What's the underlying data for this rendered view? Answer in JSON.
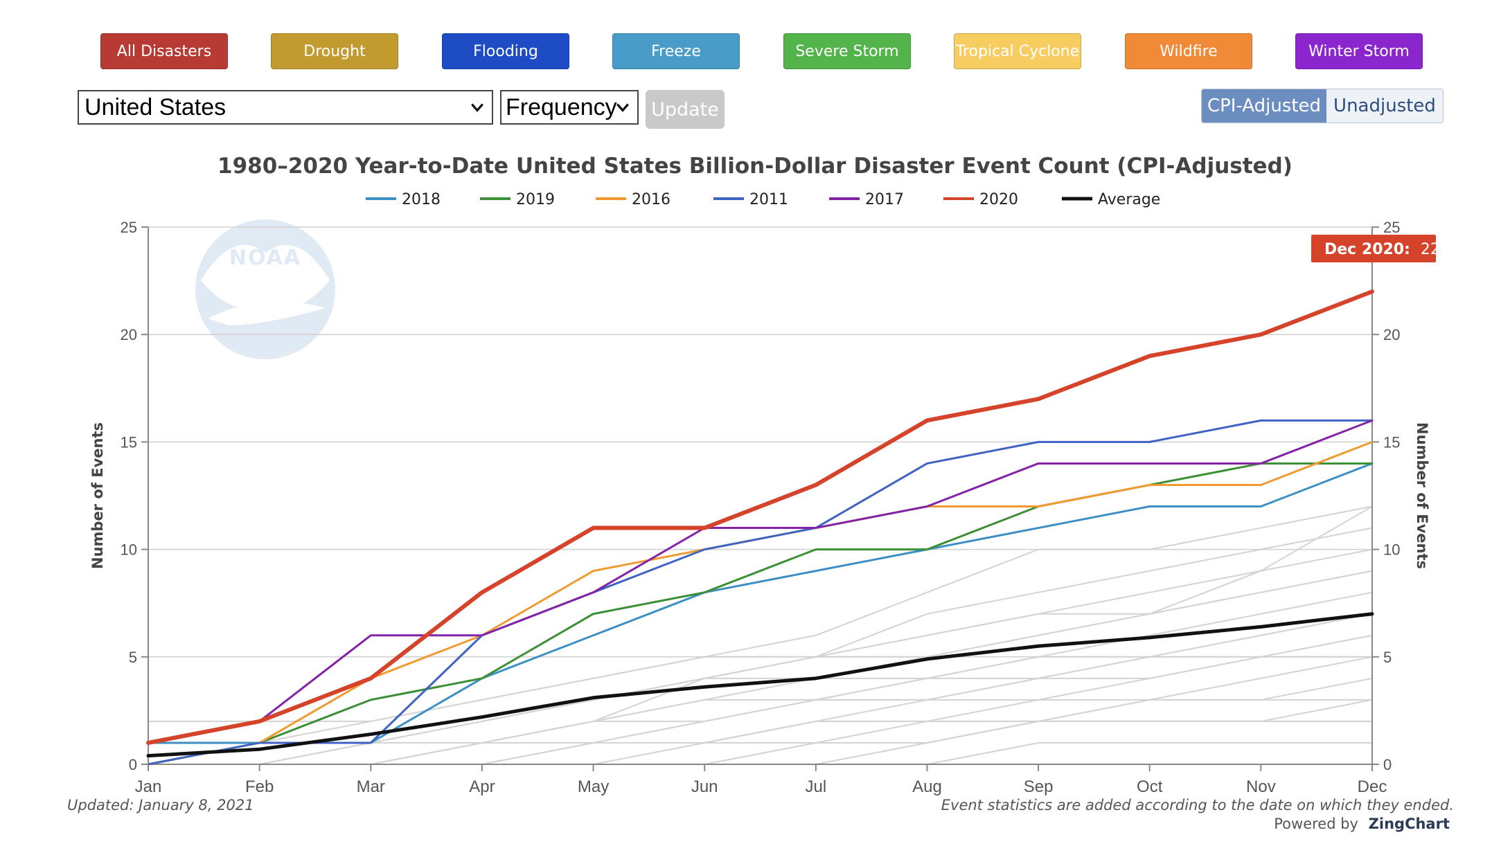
{
  "categories_bar": [
    {
      "label": "All Disasters",
      "color": "#b83a35"
    },
    {
      "label": "Drought",
      "color": "#c19a30"
    },
    {
      "label": "Flooding",
      "color": "#1d4cc5"
    },
    {
      "label": "Freeze",
      "color": "#4a9cc8"
    },
    {
      "label": "Severe Storm",
      "color": "#52b44a"
    },
    {
      "label": "Tropical Cyclone",
      "color": "#f7cd62"
    },
    {
      "label": "Wildfire",
      "color": "#f08a36"
    },
    {
      "label": "Winter Storm",
      "color": "#8b26cf"
    }
  ],
  "controls": {
    "region": "United States",
    "metric": "Frequency",
    "update_label": "Update",
    "cpi_label": "CPI-Adjusted",
    "unadjusted_label": "Unadjusted"
  },
  "logo_text": "NOAA",
  "tooltip": {
    "label": "Dec 2020:",
    "value": "22",
    "color": "#d4432a"
  },
  "footer": {
    "updated": "Updated: January 8, 2021",
    "note": "Event statistics are added according to the date on which they ended.",
    "powered_prefix": "Powered by",
    "powered_brand": "ZingChart"
  },
  "chart_data": {
    "type": "line",
    "title": "1980–2020 Year-to-Date United States Billion-Dollar Disaster Event Count (CPI-Adjusted)",
    "xlabel": "",
    "ylabel": "Number of Events",
    "y2label": "Number of Events",
    "ylim": [
      0,
      25
    ],
    "yticks": [
      "0",
      "5",
      "10",
      "15",
      "20",
      "25"
    ],
    "ytick_values": [
      0,
      5,
      10,
      15,
      20,
      25
    ],
    "grid": true,
    "legend_position": "top",
    "categories": [
      "Jan",
      "Feb",
      "Mar",
      "Apr",
      "May",
      "Jun",
      "Jul",
      "Aug",
      "Sep",
      "Oct",
      "Nov",
      "Dec"
    ],
    "series": [
      {
        "name": "2018",
        "color": "#3b8fc4",
        "width": 3,
        "values": [
          1,
          1,
          1,
          4,
          6,
          8,
          9,
          10,
          11,
          12,
          12,
          14
        ]
      },
      {
        "name": "2019",
        "color": "#3c8f34",
        "width": 3,
        "values": [
          0,
          1,
          3,
          4,
          7,
          8,
          10,
          10,
          12,
          13,
          14,
          14
        ]
      },
      {
        "name": "2016",
        "color": "#f09a30",
        "width": 3,
        "values": [
          0,
          1,
          4,
          6,
          9,
          10,
          11,
          12,
          12,
          13,
          13,
          15
        ]
      },
      {
        "name": "2011",
        "color": "#3e63c2",
        "width": 3,
        "values": [
          0,
          1,
          1,
          6,
          8,
          10,
          11,
          14,
          15,
          15,
          16,
          16
        ]
      },
      {
        "name": "2017",
        "color": "#8422a8",
        "width": 3,
        "values": [
          1,
          2,
          6,
          6,
          8,
          11,
          11,
          12,
          14,
          14,
          14,
          16
        ]
      },
      {
        "name": "2020",
        "color": "#d4432a",
        "width": 6,
        "values": [
          1,
          2,
          4,
          8,
          11,
          11,
          13,
          16,
          17,
          19,
          20,
          22
        ]
      },
      {
        "name": "Average",
        "color": "#111111",
        "width": 5,
        "values": [
          0.4,
          0.7,
          1.4,
          2.2,
          3.1,
          3.6,
          4.0,
          4.9,
          5.5,
          5.9,
          6.4,
          7.0
        ]
      }
    ],
    "background_series": [
      [
        0,
        0,
        1,
        1,
        2,
        3,
        4,
        5,
        6,
        7,
        9,
        12
      ],
      [
        0,
        0,
        0,
        1,
        2,
        4,
        5,
        7,
        8,
        9,
        10,
        11
      ],
      [
        1,
        1,
        2,
        3,
        4,
        5,
        6,
        8,
        10,
        10,
        11,
        12
      ],
      [
        0,
        1,
        1,
        2,
        3,
        4,
        5,
        6,
        7,
        8,
        9,
        10
      ],
      [
        2,
        2,
        2,
        3,
        4,
        5,
        5,
        6,
        7,
        7,
        8,
        9
      ],
      [
        0,
        0,
        1,
        2,
        3,
        4,
        5,
        5,
        6,
        7,
        8,
        9
      ],
      [
        0,
        0,
        0,
        1,
        2,
        2,
        3,
        4,
        5,
        6,
        7,
        8
      ],
      [
        0,
        0,
        1,
        1,
        2,
        3,
        3,
        4,
        4,
        5,
        6,
        7
      ],
      [
        0,
        0,
        0,
        0,
        1,
        2,
        3,
        3,
        4,
        5,
        6,
        7
      ],
      [
        1,
        1,
        1,
        2,
        3,
        4,
        4,
        4,
        5,
        5,
        5,
        6
      ],
      [
        0,
        0,
        0,
        1,
        1,
        2,
        3,
        3,
        4,
        4,
        5,
        6
      ],
      [
        0,
        0,
        0,
        0,
        1,
        1,
        2,
        3,
        3,
        4,
        5,
        5
      ],
      [
        0,
        0,
        0,
        0,
        0,
        1,
        2,
        2,
        3,
        3,
        4,
        5
      ],
      [
        0,
        0,
        0,
        1,
        1,
        1,
        2,
        2,
        2,
        3,
        3,
        4
      ],
      [
        0,
        0,
        0,
        0,
        0,
        0,
        1,
        2,
        2,
        3,
        3,
        3
      ],
      [
        0,
        0,
        0,
        0,
        0,
        0,
        1,
        1,
        2,
        2,
        2,
        3
      ],
      [
        0,
        0,
        0,
        0,
        0,
        0,
        0,
        1,
        2,
        2,
        2,
        2
      ],
      [
        0,
        0,
        0,
        0,
        1,
        1,
        1,
        1,
        2,
        2,
        2,
        2
      ],
      [
        0,
        0,
        0,
        0,
        0,
        0,
        0,
        0,
        1,
        1,
        1,
        1
      ]
    ],
    "background_color": "#d3d3d3"
  }
}
